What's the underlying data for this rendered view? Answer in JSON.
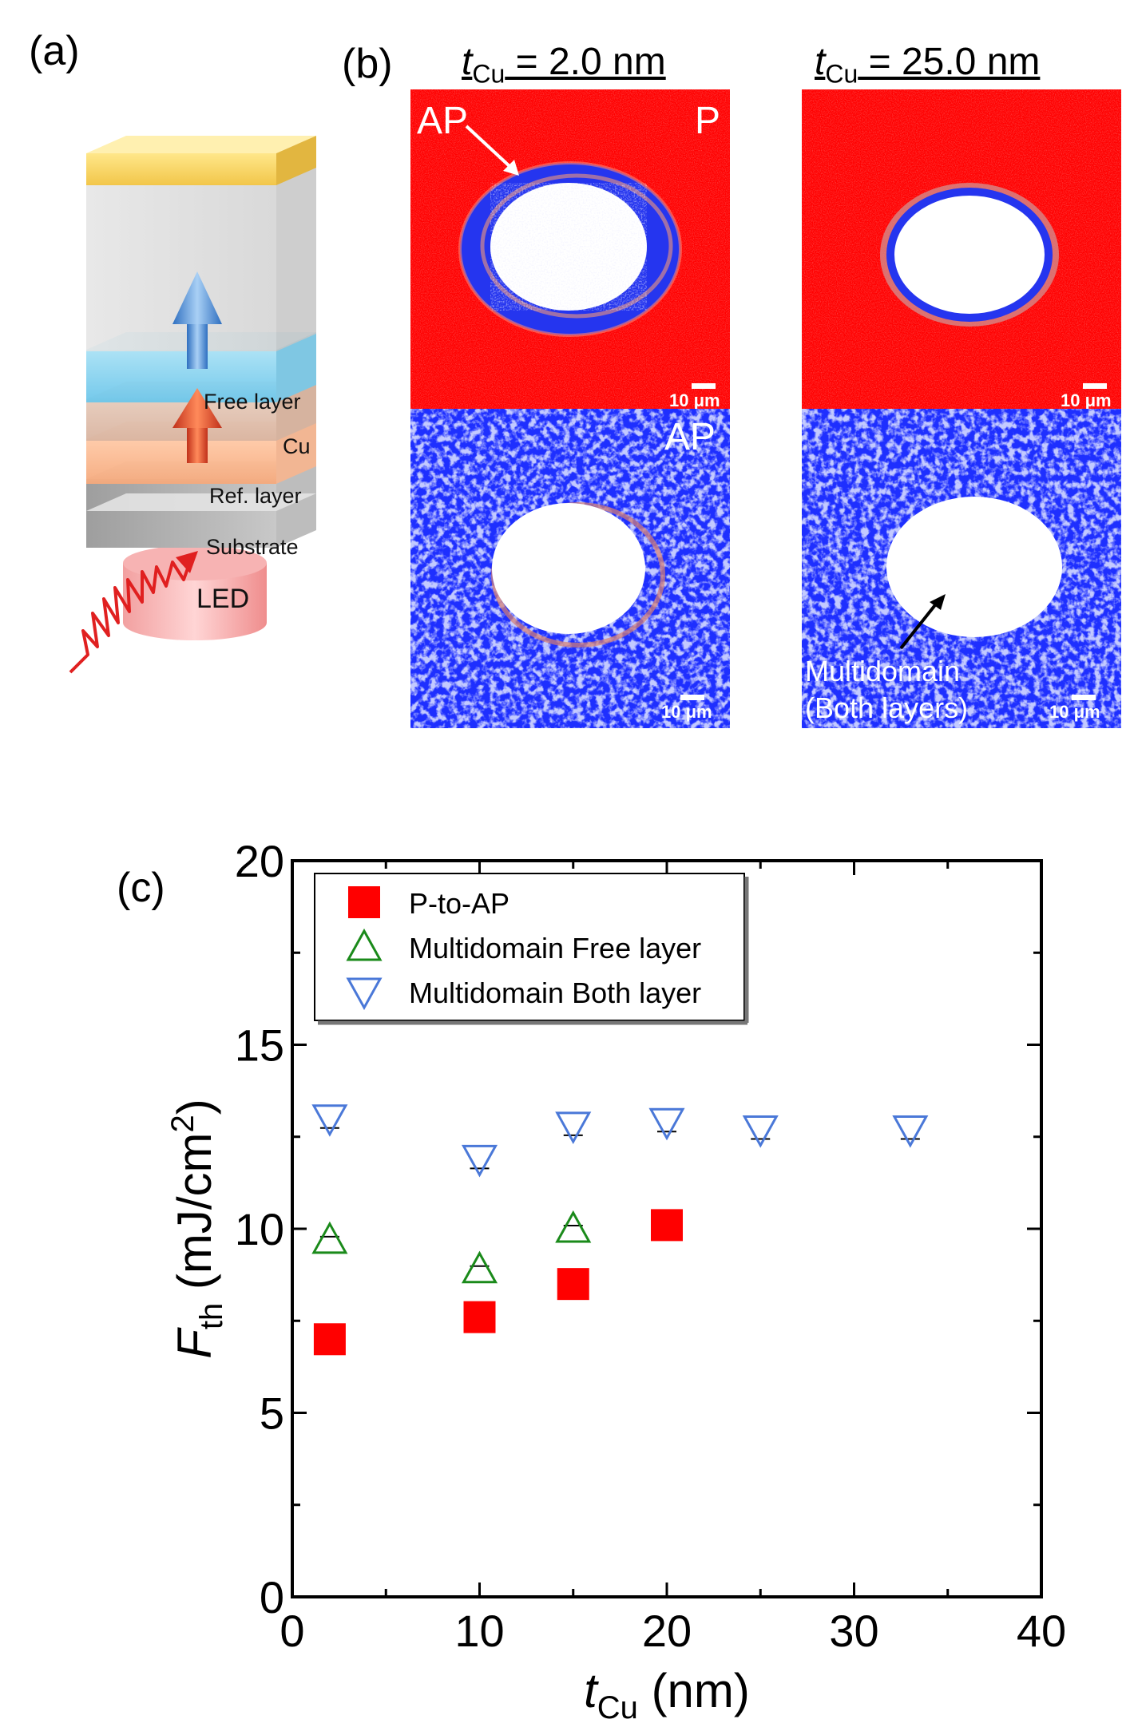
{
  "panel_labels": {
    "a": "(a)",
    "b": "(b)",
    "c": "(c)"
  },
  "panel_a": {
    "layers": {
      "free_layer": "Free layer",
      "cu": "Cu",
      "ref_layer": "Ref. layer",
      "substrate": "Substrate",
      "led": "LED"
    }
  },
  "panel_b": {
    "columns": [
      {
        "t_symbol": "t",
        "t_sub": "Cu",
        "value": " = 2.0 nm"
      },
      {
        "t_symbol": "t",
        "t_sub": "Cu",
        "value": " = 25.0 nm"
      }
    ],
    "top_left": {
      "label_ap": "AP",
      "label_p": "P",
      "scale": "10 μm"
    },
    "top_right": {
      "scale": "10 μm"
    },
    "bottom_left": {
      "label_ap": "AP",
      "scale": "10 μm"
    },
    "bottom_right": {
      "multidomain_line1": "Multidomain",
      "multidomain_line2": "(Both layers)",
      "scale": "10 μm"
    },
    "colors": {
      "p_state": "#ff0000",
      "ap_state": "#1e2fff",
      "spot": "#ffffff"
    }
  },
  "chart_data": {
    "type": "scatter",
    "panel": "(c)",
    "xlabel_symbol": "t",
    "xlabel_sub": "Cu",
    "xlabel_unit": " (nm)",
    "ylabel_symbol": "F",
    "ylabel_sub": "th",
    "ylabel_unit": " (mJ/cm",
    "ylabel_sup": "2",
    "ylabel_close": ")",
    "xlim": [
      0,
      40
    ],
    "ylim": [
      0,
      20
    ],
    "xticks": [
      0,
      10,
      20,
      30,
      40
    ],
    "yticks": [
      0,
      5,
      10,
      15,
      20
    ],
    "legend_position": "top-left",
    "series": [
      {
        "name": "P-to-AP",
        "marker": "square",
        "color": "#ff0000",
        "x": [
          2,
          10,
          15,
          20
        ],
        "y": [
          7.0,
          7.6,
          8.5,
          10.1
        ]
      },
      {
        "name": "Multidomain Free layer",
        "marker": "triangle-up",
        "color": "#1a8a1a",
        "x": [
          2,
          10,
          15
        ],
        "y": [
          9.7,
          8.9,
          10.0
        ]
      },
      {
        "name": "Multidomain Both layer",
        "marker": "triangle-down",
        "color": "#4a78d8",
        "x": [
          2,
          10,
          15,
          20,
          25,
          33
        ],
        "y": [
          13.0,
          11.9,
          12.8,
          12.9,
          12.7,
          12.7
        ]
      }
    ]
  }
}
